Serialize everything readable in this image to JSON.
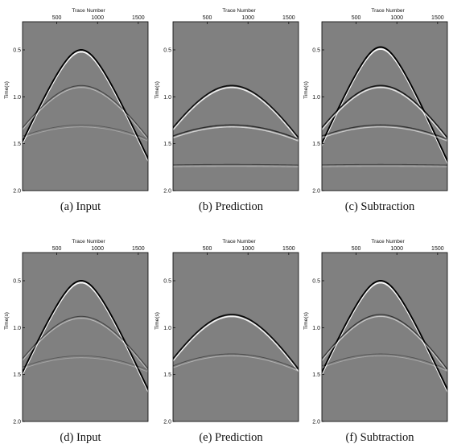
{
  "figure": {
    "background_color": "#808080",
    "panels": [
      {
        "id": "a",
        "caption": "(a) Input",
        "x_axis_label": "Trace Number",
        "y_axis_label": "Time(s)",
        "x_ticks": [
          "500",
          "1000",
          "1500"
        ],
        "y_ticks": [
          "0.5",
          "1.0",
          "1.5",
          "2.0"
        ],
        "events": [
          {
            "apex_time_s": 0.5,
            "apex_trace": 800,
            "strength": 1.0
          },
          {
            "apex_time_s": 0.88,
            "apex_trace": 800,
            "strength": 0.3
          },
          {
            "apex_time_s": 1.3,
            "apex_trace": 800,
            "strength": 0.08
          }
        ]
      },
      {
        "id": "b",
        "caption": "(b) Prediction",
        "x_axis_label": "Trace Number",
        "y_axis_label": "Time(s)",
        "x_ticks": [
          "500",
          "1000",
          "1500"
        ],
        "y_ticks": [
          "0.5",
          "1.0",
          "1.5",
          "2.0"
        ],
        "events": [
          {
            "apex_time_s": 0.88,
            "apex_trace": 800,
            "strength": 0.85
          },
          {
            "apex_time_s": 1.3,
            "apex_trace": 800,
            "strength": 0.55
          },
          {
            "apex_time_s": 1.72,
            "apex_trace": 800,
            "strength": 0.25
          }
        ]
      },
      {
        "id": "c",
        "caption": "(c) Subtraction",
        "x_axis_label": "Trace Number",
        "y_axis_label": "Time(s)",
        "x_ticks": [
          "500",
          "1000",
          "1500"
        ],
        "y_ticks": [
          "0.5",
          "1.0",
          "1.5",
          "2.0"
        ],
        "events": [
          {
            "apex_time_s": 0.47,
            "apex_trace": 800,
            "strength": 1.0
          },
          {
            "apex_time_s": 0.88,
            "apex_trace": 800,
            "strength": 0.75
          },
          {
            "apex_time_s": 1.3,
            "apex_trace": 800,
            "strength": 0.45
          },
          {
            "apex_time_s": 1.72,
            "apex_trace": 800,
            "strength": 0.22
          }
        ]
      },
      {
        "id": "d",
        "caption": "(d) Input",
        "x_axis_label": "Trace Number",
        "y_axis_label": "Time(s)",
        "x_ticks": [
          "500",
          "1000",
          "1500"
        ],
        "y_ticks": [
          "0.5",
          "1.0",
          "1.5",
          "2.0"
        ],
        "events": [
          {
            "apex_time_s": 0.5,
            "apex_trace": 800,
            "strength": 1.0
          },
          {
            "apex_time_s": 0.88,
            "apex_trace": 800,
            "strength": 0.3
          },
          {
            "apex_time_s": 1.3,
            "apex_trace": 800,
            "strength": 0.08
          }
        ]
      },
      {
        "id": "e",
        "caption": "(e) Prediction",
        "x_axis_label": "Trace Number",
        "y_axis_label": "Time(s)",
        "x_ticks": [
          "500",
          "1000",
          "1500"
        ],
        "y_ticks": [
          "0.5",
          "1.0",
          "1.5",
          "2.0"
        ],
        "events": [
          {
            "apex_time_s": 0.86,
            "apex_trace": 800,
            "strength": 0.9
          },
          {
            "apex_time_s": 1.28,
            "apex_trace": 800,
            "strength": 0.2
          }
        ]
      },
      {
        "id": "f",
        "caption": "(f) Subtraction",
        "x_axis_label": "Trace Number",
        "y_axis_label": "Time(s)",
        "x_ticks": [
          "500",
          "1000",
          "1500"
        ],
        "y_ticks": [
          "0.5",
          "1.0",
          "1.5",
          "2.0"
        ],
        "events": [
          {
            "apex_time_s": 0.5,
            "apex_trace": 800,
            "strength": 1.0
          },
          {
            "apex_time_s": 0.86,
            "apex_trace": 800,
            "strength": 0.45
          },
          {
            "apex_time_s": 1.28,
            "apex_trace": 800,
            "strength": 0.12
          }
        ]
      }
    ]
  }
}
